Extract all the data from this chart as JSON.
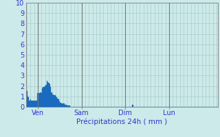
{
  "xlabel": "Précipitations 24h ( mm )",
  "background_color": "#cceaea",
  "plot_bg_color": "#cceaea",
  "bar_color": "#1a6abf",
  "bar_edge_color": "#1a6abf",
  "ylim": [
    0,
    10
  ],
  "yticks": [
    0,
    1,
    2,
    3,
    4,
    5,
    6,
    7,
    8,
    9,
    10
  ],
  "day_labels": [
    "Ven",
    "Sam",
    "Dim",
    "Lun"
  ],
  "day_positions": [
    12,
    60,
    108,
    156
  ],
  "grid_color": "#aacaca",
  "tick_label_color": "#3333cc",
  "n_bars": 192,
  "values": [
    1.5,
    1.0,
    0.9,
    0.6,
    0.7,
    0.6,
    0.6,
    0.6,
    0.6,
    0.6,
    0.6,
    0.6,
    1.3,
    1.3,
    1.3,
    1.4,
    1.3,
    1.8,
    1.9,
    1.9,
    2.0,
    2.1,
    2.5,
    2.4,
    2.3,
    2.2,
    1.9,
    1.4,
    1.2,
    1.2,
    1.1,
    1.1,
    1.0,
    0.9,
    0.8,
    0.7,
    0.5,
    0.4,
    0.35,
    0.3,
    0.3,
    0.3,
    0.2,
    0.2,
    0.15,
    0.15,
    0.1,
    0.1,
    0.0,
    0.0,
    0.0,
    0.0,
    0.0,
    0.0,
    0.0,
    0.0,
    0.0,
    0.0,
    0.0,
    0.0,
    0.0,
    0.0,
    0.0,
    0.0,
    0.0,
    0.0,
    0.0,
    0.0,
    0.0,
    0.0,
    0.0,
    0.0,
    0.0,
    0.0,
    0.0,
    0.0,
    0.0,
    0.0,
    0.0,
    0.0,
    0.0,
    0.0,
    0.0,
    0.0,
    0.0,
    0.0,
    0.0,
    0.0,
    0.0,
    0.0,
    0.0,
    0.0,
    0.0,
    0.0,
    0.0,
    0.0,
    0.0,
    0.0,
    0.0,
    0.0,
    0.0,
    0.0,
    0.0,
    0.0,
    0.0,
    0.0,
    0.0,
    0.0,
    0.0,
    0.0,
    0.0,
    0.0,
    0.0,
    0.0,
    0.0,
    0.0,
    0.2,
    0.0,
    0.0,
    0.0,
    0.0,
    0.0,
    0.0,
    0.0,
    0.0,
    0.0,
    0.0,
    0.0,
    0.0,
    0.0,
    0.0,
    0.0,
    0.0,
    0.0,
    0.0,
    0.0,
    0.0,
    0.0,
    0.0,
    0.0,
    0.0,
    0.0,
    0.0,
    0.0,
    0.0,
    0.0,
    0.0,
    0.0,
    0.0,
    0.0,
    0.0,
    0.0,
    0.0,
    0.0,
    0.0,
    0.0,
    0.0,
    0.0,
    0.0,
    0.0,
    0.0,
    0.0,
    0.0,
    0.0,
    0.0,
    0.0,
    0.0,
    0.0,
    0.0,
    0.0,
    0.0,
    0.0,
    0.0,
    0.0,
    0.0,
    0.0,
    0.0,
    0.0,
    0.0,
    0.0,
    0.0,
    0.0,
    0.0,
    0.0,
    0.0,
    0.0,
    0.0,
    0.0,
    0.0,
    0.0,
    0.0,
    0.0,
    0.0,
    0.0,
    0.0,
    0.0,
    0.0,
    0.0,
    0.0,
    0.0,
    0.0,
    0.0,
    0.0,
    0.0,
    0.0,
    0.0,
    0.0,
    0.0,
    0.0,
    0.0
  ]
}
